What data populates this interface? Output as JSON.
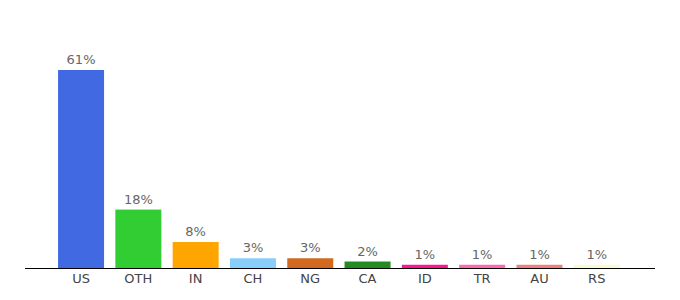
{
  "chart_data": {
    "type": "bar",
    "categories": [
      "US",
      "OTH",
      "IN",
      "CH",
      "NG",
      "CA",
      "ID",
      "TR",
      "AU",
      "RS"
    ],
    "values": [
      61,
      18,
      8,
      3,
      3,
      2,
      1,
      1,
      1,
      1
    ],
    "value_labels": [
      "61%",
      "18%",
      "8%",
      "3%",
      "3%",
      "2%",
      "1%",
      "1%",
      "1%",
      "1%"
    ],
    "colors": [
      "#4169e1",
      "#32cd32",
      "#ffa500",
      "#87cefa",
      "#d2691e",
      "#228b22",
      "#ff1493",
      "#ff69b4",
      "#f08080",
      "#fafad2"
    ],
    "ylim": [
      0,
      61
    ],
    "data_labels": true,
    "tick_labels": "x",
    "grid": false
  }
}
